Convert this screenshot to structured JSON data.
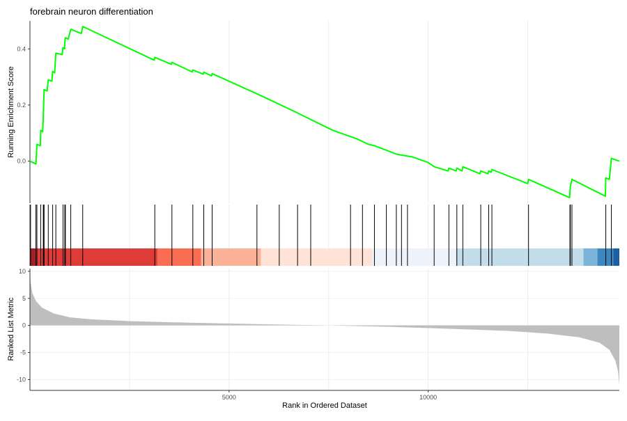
{
  "chart_data": {
    "type": "line",
    "title": "forebrain neuron differentiation",
    "xlabel": "Rank in Ordered Dataset",
    "ylabel_top": "Running Enrichment Score",
    "ylabel_bottom": "Ranked List Metric",
    "xlim": [
      0,
      14800
    ],
    "x_ticks": [
      5000,
      10000
    ],
    "x_tick_labels": [
      "5000",
      "10000"
    ],
    "es_ylim": [
      -0.15,
      0.5
    ],
    "es_ticks": [
      0.0,
      0.2,
      0.4
    ],
    "es_tick_labels": [
      "0.0",
      "0.2",
      "0.4"
    ],
    "metric_ylim": [
      -12,
      10.5
    ],
    "metric_ticks": [
      10,
      5,
      0,
      -5,
      -10
    ],
    "metric_tick_labels": [
      "10",
      "5",
      "0",
      "-5",
      "-10"
    ],
    "grid": true,
    "colors": {
      "es_line": "#00ff00",
      "metric_fill": "#bebebe",
      "hit": "#000000"
    },
    "series": [
      {
        "values": [
          [
            0,
            0.0
          ],
          [
            150,
            -0.01
          ],
          [
            175,
            0.06
          ],
          [
            260,
            0.055
          ],
          [
            270,
            0.11
          ],
          [
            320,
            0.105
          ],
          [
            335,
            0.16
          ],
          [
            345,
            0.21
          ],
          [
            355,
            0.255
          ],
          [
            430,
            0.25
          ],
          [
            460,
            0.29
          ],
          [
            550,
            0.285
          ],
          [
            570,
            0.32
          ],
          [
            620,
            0.315
          ],
          [
            650,
            0.385
          ],
          [
            810,
            0.38
          ],
          [
            830,
            0.405
          ],
          [
            870,
            0.4
          ],
          [
            875,
            0.425
          ],
          [
            890,
            0.44
          ],
          [
            960,
            0.435
          ],
          [
            1025,
            0.47
          ],
          [
            1290,
            0.455
          ],
          [
            1325,
            0.48
          ],
          [
            3120,
            0.36
          ],
          [
            3135,
            0.37
          ],
          [
            3550,
            0.345
          ],
          [
            3565,
            0.352
          ],
          [
            4075,
            0.318
          ],
          [
            4090,
            0.325
          ],
          [
            4350,
            0.31
          ],
          [
            4365,
            0.317
          ],
          [
            4560,
            0.304
          ],
          [
            4575,
            0.312
          ],
          [
            5700,
            0.24
          ],
          [
            6600,
            0.18
          ],
          [
            7600,
            0.11
          ],
          [
            8200,
            0.08
          ],
          [
            8500,
            0.06
          ],
          [
            8650,
            0.055
          ],
          [
            9200,
            0.025
          ],
          [
            9400,
            0.02
          ],
          [
            9600,
            0.015
          ],
          [
            10000,
            -0.005
          ],
          [
            10150,
            -0.02
          ],
          [
            10500,
            -0.035
          ],
          [
            10520,
            -0.025
          ],
          [
            10700,
            -0.035
          ],
          [
            10720,
            -0.025
          ],
          [
            10850,
            -0.035
          ],
          [
            10870,
            -0.02
          ],
          [
            11300,
            -0.045
          ],
          [
            11320,
            -0.035
          ],
          [
            11500,
            -0.045
          ],
          [
            11520,
            -0.035
          ],
          [
            11580,
            -0.04
          ],
          [
            11600,
            -0.03
          ],
          [
            12500,
            -0.08
          ],
          [
            12520,
            -0.065
          ],
          [
            13550,
            -0.13
          ],
          [
            13570,
            -0.09
          ],
          [
            13610,
            -0.065
          ],
          [
            14450,
            -0.125
          ],
          [
            14460,
            -0.06
          ],
          [
            14550,
            -0.065
          ],
          [
            14600,
            0.01
          ],
          [
            14800,
            0.0
          ]
        ]
      }
    ],
    "hits": [
      15,
      150,
      175,
      270,
      335,
      345,
      355,
      460,
      570,
      650,
      830,
      875,
      890,
      1025,
      1325,
      3135,
      3565,
      4090,
      4365,
      4575,
      5700,
      6260,
      6720,
      7050,
      8050,
      8350,
      8650,
      8950,
      9200,
      9330,
      9480,
      10150,
      10520,
      10720,
      10870,
      11320,
      11520,
      11600,
      12520,
      13560,
      13570,
      13610,
      14460,
      14600
    ],
    "color_bands": [
      {
        "from": 0,
        "to": 150,
        "color": "#a51f24"
      },
      {
        "from": 150,
        "to": 3200,
        "color": "#df3c39"
      },
      {
        "from": 3200,
        "to": 4300,
        "color": "#f96e52"
      },
      {
        "from": 4300,
        "to": 5800,
        "color": "#fcb199"
      },
      {
        "from": 5800,
        "to": 8600,
        "color": "#fee3d6"
      },
      {
        "from": 8600,
        "to": 10700,
        "color": "#eef3fb"
      },
      {
        "from": 10700,
        "to": 13900,
        "color": "#c3dcea"
      },
      {
        "from": 13900,
        "to": 14250,
        "color": "#7cb4d9"
      },
      {
        "from": 14250,
        "to": 14650,
        "color": "#3b87c2"
      },
      {
        "from": 14650,
        "to": 14800,
        "color": "#1c5fa5"
      }
    ],
    "metric_curve": [
      [
        0,
        10.4
      ],
      [
        15,
        8.0
      ],
      [
        60,
        6.0
      ],
      [
        150,
        4.5
      ],
      [
        300,
        3.3
      ],
      [
        600,
        2.2
      ],
      [
        1000,
        1.5
      ],
      [
        1500,
        1.15
      ],
      [
        2500,
        0.8
      ],
      [
        4000,
        0.5
      ],
      [
        6000,
        0.2
      ],
      [
        7500,
        0.0
      ],
      [
        9000,
        -0.25
      ],
      [
        10500,
        -0.6
      ],
      [
        12000,
        -1.0
      ],
      [
        13000,
        -1.5
      ],
      [
        13800,
        -2.2
      ],
      [
        14300,
        -3.2
      ],
      [
        14550,
        -4.5
      ],
      [
        14700,
        -6.5
      ],
      [
        14770,
        -8.5
      ],
      [
        14800,
        -11.0
      ]
    ]
  }
}
